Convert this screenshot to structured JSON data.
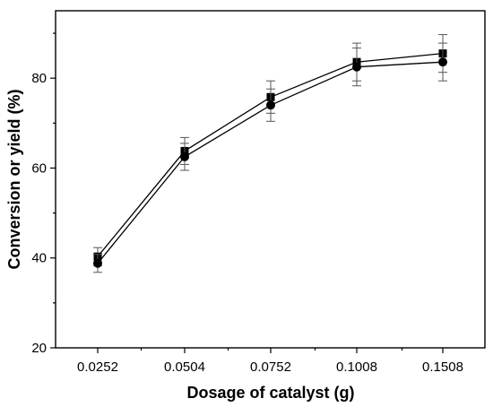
{
  "chart_data": {
    "type": "line",
    "xlabel": "Dosage of catalyst (g)",
    "ylabel": "Conversion or yield (%)",
    "categories": [
      "0.0252",
      "0.0504",
      "0.0752",
      "0.1008",
      "0.1508"
    ],
    "yticks": [
      20,
      40,
      60,
      80
    ],
    "ylim": [
      20,
      95
    ],
    "grid": false,
    "series": [
      {
        "marker": "square",
        "values": [
          40.3,
          63.8,
          75.8,
          83.6,
          85.5
        ],
        "errors": [
          2.0,
          3.0,
          3.6,
          4.2,
          4.2
        ]
      },
      {
        "marker": "circle",
        "values": [
          38.8,
          62.5,
          74.0,
          82.5,
          83.6
        ],
        "errors": [
          2.0,
          3.0,
          3.6,
          4.2,
          4.2
        ]
      }
    ]
  }
}
